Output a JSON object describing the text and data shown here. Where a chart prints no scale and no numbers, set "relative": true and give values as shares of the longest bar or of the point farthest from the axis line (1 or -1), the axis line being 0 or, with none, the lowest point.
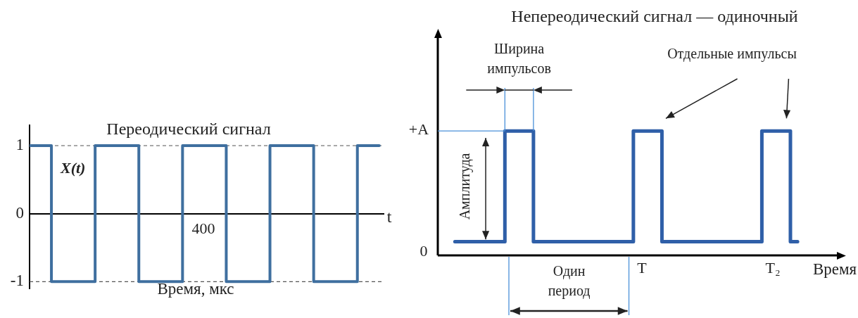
{
  "chart_data": [
    {
      "type": "step",
      "title": "Переодический сигнал",
      "xlabel": "Время, мкс",
      "categories": [
        null,
        null,
        null,
        null,
        null,
        null,
        null,
        null,
        null
      ],
      "series": [
        {
          "name": "X(t)",
          "color": "#3f6f9f",
          "values": [
            1,
            -1,
            1,
            -1,
            1,
            -1,
            1,
            -1,
            1
          ]
        }
      ],
      "ylim": [
        -1.1,
        1.3
      ],
      "yticks": [
        1,
        0,
        -1
      ],
      "ref_lines": [
        {
          "axis": "y",
          "value": 1,
          "color": "#555555",
          "line_style": "dashed"
        },
        {
          "axis": "y",
          "value": -1,
          "color": "#555555",
          "line_style": "dashed"
        }
      ],
      "annotations": [
        "t",
        "400"
      ],
      "grid": false,
      "legend": false,
      "marker": "none"
    },
    {
      "type": "step",
      "title": "Непереодический сигнал — одиночный",
      "xlabel": "Время",
      "relative": true,
      "categories": [
        null,
        null,
        null,
        null,
        null,
        null,
        null,
        null,
        null,
        null,
        null,
        null,
        null,
        null,
        null,
        null,
        null,
        null,
        null,
        null,
        null,
        null,
        null,
        null,
        null
      ],
      "series": [
        {
          "color": "#2f5fa8",
          "values": [
            0.11,
            0.11,
            0.11,
            0.11,
            1,
            1,
            0.11,
            0.11,
            0.11,
            0.11,
            0.11,
            0.11,
            0.11,
            1,
            1,
            0.11,
            0.11,
            0.11,
            0.11,
            0.11,
            0.11,
            0.11,
            1,
            1,
            0.11
          ]
        }
      ],
      "annotations": [
        "Ширина импульсов",
        "Отдельные импульсы",
        "Амплитуда",
        "Один период",
        "0",
        "+A",
        "T",
        "T₂"
      ],
      "grid": false,
      "legend": false,
      "marker": "none"
    }
  ]
}
